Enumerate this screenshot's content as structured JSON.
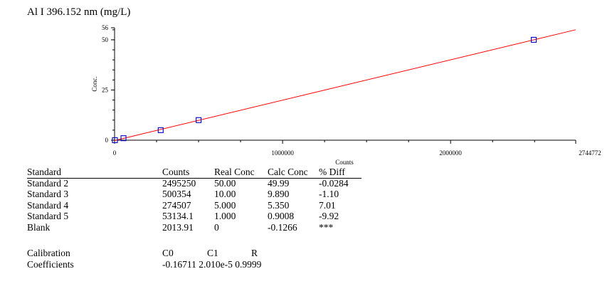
{
  "title": "Al I 396.152 nm (mg/L)",
  "colors": {
    "line": "#ff0000",
    "marker": "#0000cc",
    "axis": "#000000"
  },
  "chart_data": {
    "type": "scatter",
    "title": "Al I 396.152 nm (mg/L)",
    "xlabel": "Counts",
    "ylabel": "Conc.",
    "xlim": [
      0,
      2744772
    ],
    "ylim": [
      0,
      56
    ],
    "x_ticks": [
      "0",
      "1000000",
      "2000000",
      "2744772"
    ],
    "y_ticks": [
      "0",
      "25",
      "50",
      "56"
    ],
    "series": [
      {
        "values": [
          [
            2013.91,
            0
          ],
          [
            53134.1,
            1.0
          ],
          [
            274507,
            5.0
          ],
          [
            500354,
            10.0
          ],
          [
            2495250,
            50.0
          ]
        ]
      }
    ],
    "fit": {
      "intercept": -0.16711,
      "slope": 2.01e-05
    }
  },
  "table": {
    "headers": [
      "Standard",
      "Counts",
      "Real Conc",
      "Calc Conc",
      "% Diff"
    ],
    "rows": [
      [
        "Standard 2",
        "2495250",
        "50.00",
        "49.99",
        "-0.0284"
      ],
      [
        "Standard 3",
        "500354",
        "10.00",
        "9.890",
        "-1.10"
      ],
      [
        "Standard 4",
        "274507",
        "5.000",
        "5.350",
        "7.01"
      ],
      [
        "Standard 5",
        "53134.1",
        "1.000",
        "0.9008",
        "-9.92"
      ],
      [
        "Blank",
        "2013.91",
        "0",
        "-0.1266",
        "***"
      ]
    ]
  },
  "calibration": {
    "label1": "Calibration",
    "label2": "Coefficients",
    "headers": [
      "C0",
      "C1",
      "R"
    ],
    "values": "-0.16711 2.010e-5 0.9999"
  }
}
